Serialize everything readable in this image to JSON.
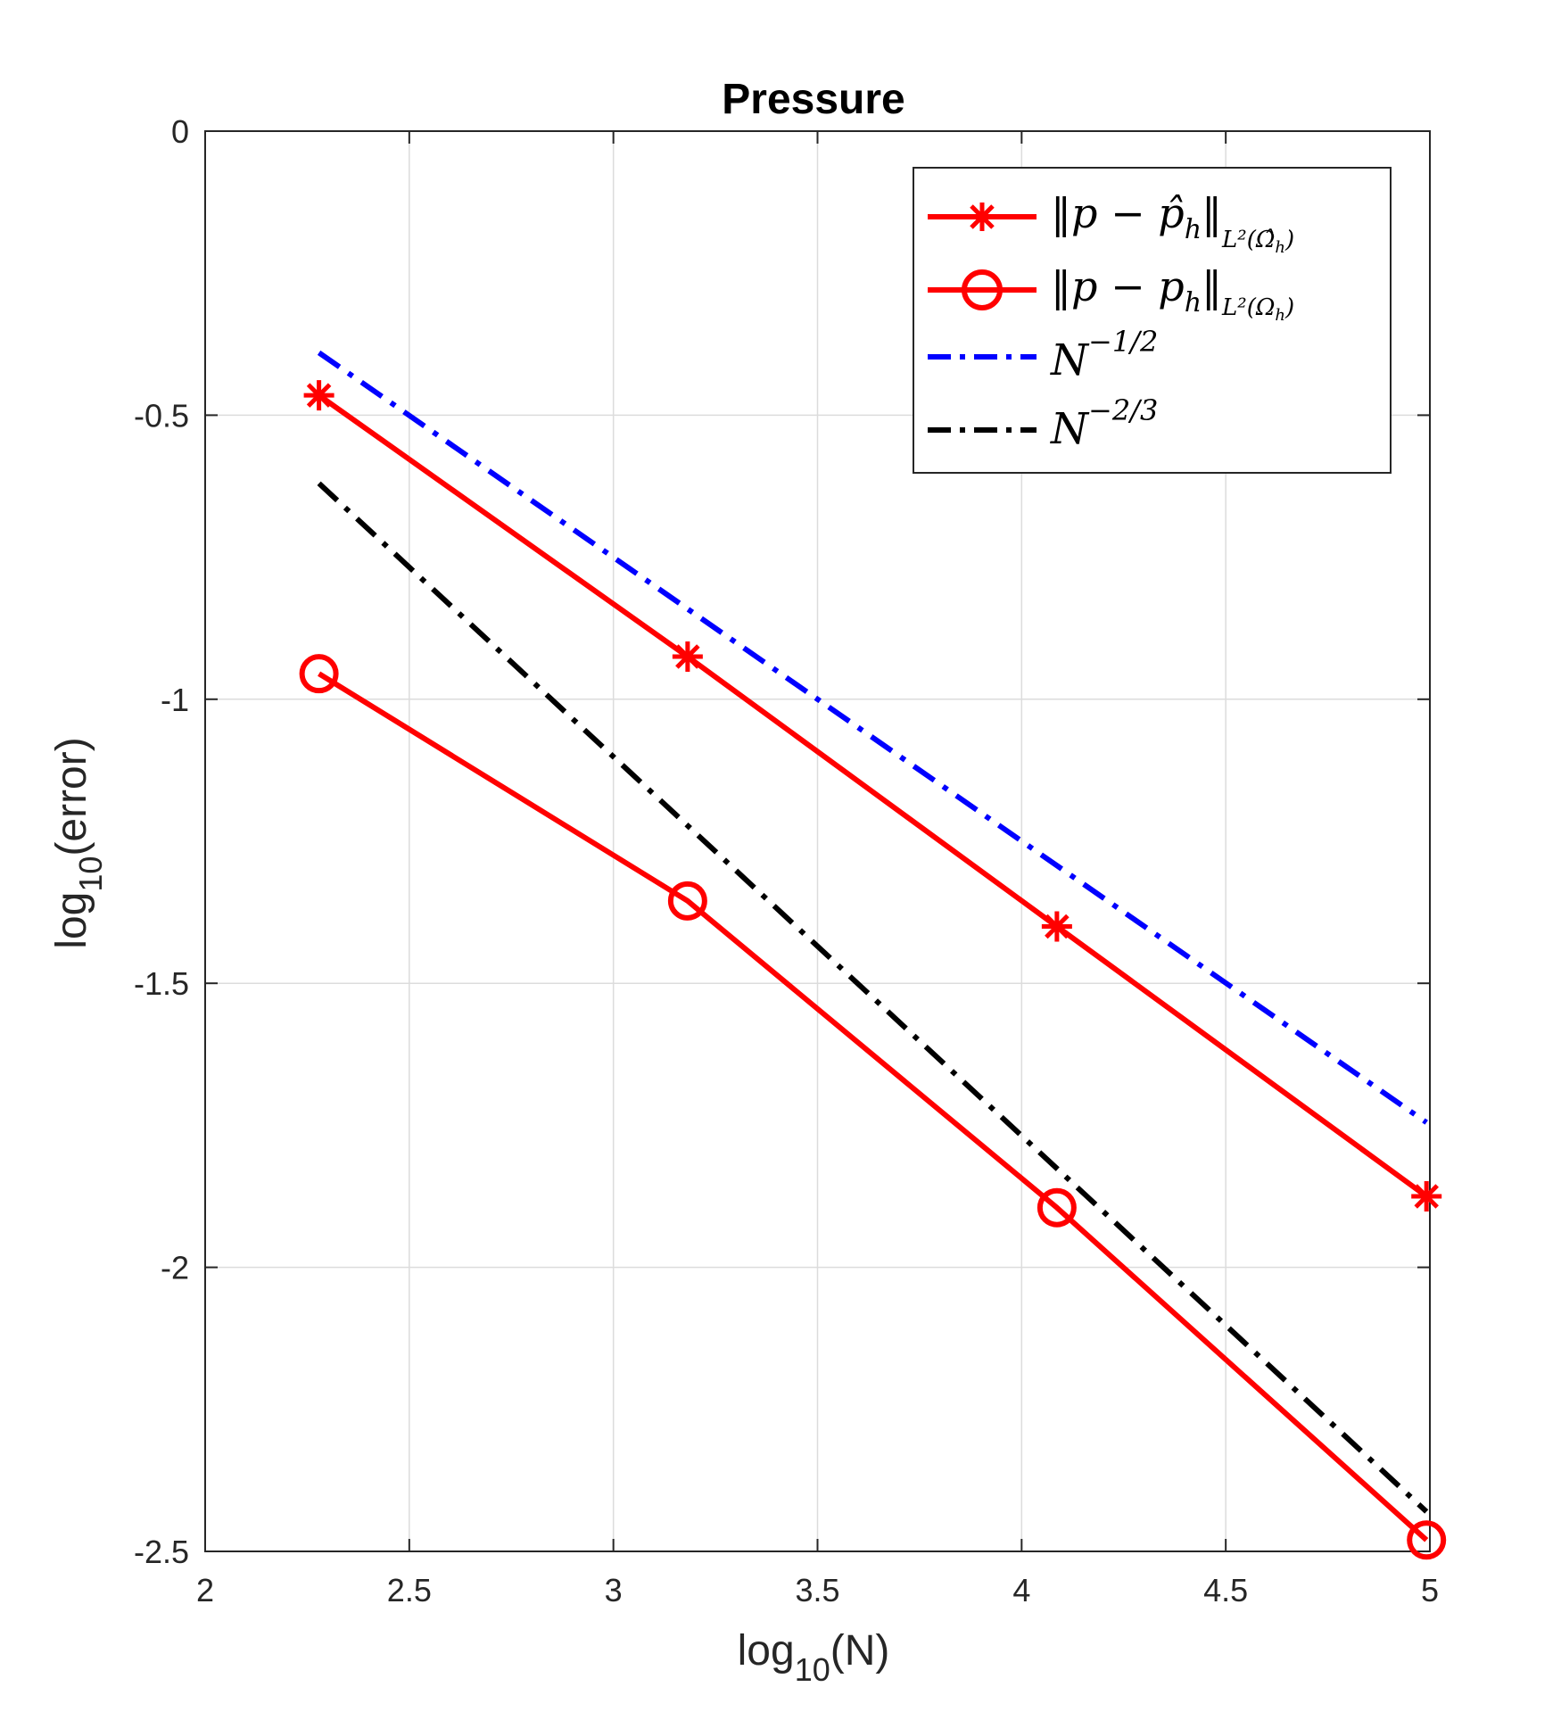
{
  "chart_data": {
    "type": "line",
    "title": "Pressure",
    "xlabel": {
      "base": "log",
      "sub": "10",
      "rest": "(N)"
    },
    "ylabel": {
      "base": "log",
      "sub": "10",
      "rest": "(error)"
    },
    "xlim": [
      2,
      5
    ],
    "ylim": [
      -2.5,
      0
    ],
    "xticks": [
      2,
      2.5,
      3,
      3.5,
      4,
      4.5,
      5
    ],
    "yticks": [
      0,
      -0.5,
      -1,
      -1.5,
      -2,
      -2.5
    ],
    "xtick_labels": [
      "2",
      "2.5",
      "3",
      "3.5",
      "4",
      "4.5",
      "5"
    ],
    "ytick_labels": [
      "0",
      "-0.5",
      "-1",
      "-1.5",
      "-2",
      "-2.5"
    ],
    "grid": true,
    "legend_position": "top-right",
    "series": [
      {
        "name": "||p − p̂_h||_{L²(Ω̂_h)}",
        "legend": {
          "main": "‖p − p̂",
          "sub_h": "h",
          "close": "‖",
          "norm_sub": "L²(Ω̂",
          "norm_sub_h": "h",
          "norm_close": ")"
        },
        "color": "#ff0000",
        "style": "solid",
        "marker": "asterisk",
        "x": [
          2.2788,
          3.1818,
          4.0864,
          4.9917
        ],
        "y": [
          -0.465,
          -0.925,
          -1.4,
          -1.875
        ]
      },
      {
        "name": "||p − p_h||_{L²(Ω_h)}",
        "legend": {
          "main": "‖p − p",
          "sub_h": "h",
          "close": "‖",
          "norm_sub": "L²(Ω",
          "norm_sub_h": "h",
          "norm_close": ")"
        },
        "color": "#ff0000",
        "style": "solid",
        "marker": "circle",
        "x": [
          2.2788,
          3.1818,
          4.0864,
          4.9917
        ],
        "y": [
          -0.955,
          -1.355,
          -1.895,
          -2.48
        ]
      },
      {
        "name": "N^{-1/2}",
        "legend": {
          "main": "N",
          "sup": "−1/2"
        },
        "color": "#0000ff",
        "style": "dashdot",
        "marker": "none",
        "x": [
          2.2788,
          4.9917
        ],
        "y": [
          -0.39,
          -1.745
        ]
      },
      {
        "name": "N^{-2/3}",
        "legend": {
          "main": "N",
          "sup": "−2/3"
        },
        "color": "#000000",
        "style": "dashdot",
        "marker": "none",
        "x": [
          2.2788,
          4.9917
        ],
        "y": [
          -0.62,
          -2.43
        ]
      }
    ]
  }
}
